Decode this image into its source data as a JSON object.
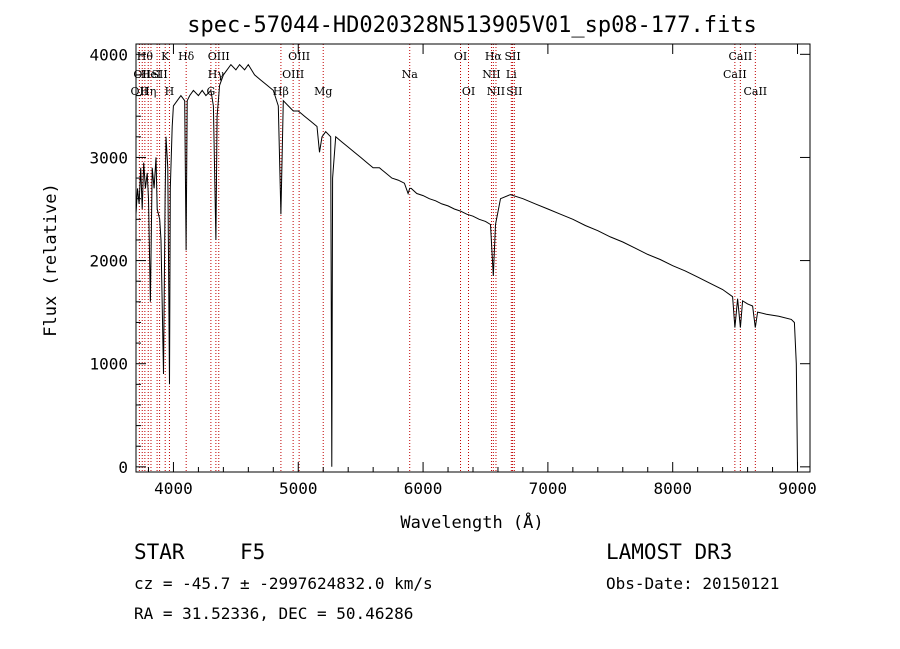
{
  "chart_data": {
    "type": "line",
    "title": "spec-57044-HD020328N513905V01_sp08-177.fits",
    "xlabel": "Wavelength (Å)",
    "ylabel": "Flux (relative)",
    "xlim": [
      3700,
      9100
    ],
    "ylim": [
      -50,
      4100
    ],
    "xticks": [
      4000,
      5000,
      6000,
      7000,
      8000,
      9000
    ],
    "yticks": [
      0,
      1000,
      2000,
      3000,
      4000
    ],
    "series": [
      {
        "name": "spectrum",
        "x": [
          3700,
          3712,
          3725,
          3738,
          3750,
          3762,
          3775,
          3790,
          3800,
          3815,
          3830,
          3845,
          3860,
          3870,
          3890,
          3900,
          3920,
          3933,
          3940,
          3955,
          3968,
          3975,
          3990,
          4000,
          4030,
          4060,
          4090,
          4101,
          4110,
          4130,
          4160,
          4200,
          4230,
          4260,
          4300,
          4320,
          4340,
          4350,
          4370,
          4400,
          4430,
          4460,
          4500,
          4530,
          4570,
          4600,
          4650,
          4700,
          4750,
          4800,
          4840,
          4861,
          4880,
          4920,
          4960,
          5000,
          5050,
          5100,
          5150,
          5170,
          5190,
          5220,
          5260,
          5269,
          5275,
          5300,
          5350,
          5400,
          5450,
          5500,
          5550,
          5600,
          5650,
          5700,
          5750,
          5800,
          5850,
          5880,
          5893,
          5905,
          5950,
          6000,
          6050,
          6100,
          6150,
          6200,
          6250,
          6300,
          6350,
          6400,
          6450,
          6500,
          6540,
          6563,
          6580,
          6620,
          6700,
          6800,
          6900,
          7000,
          7100,
          7200,
          7300,
          7400,
          7500,
          7600,
          7700,
          7800,
          7900,
          8000,
          8100,
          8200,
          8300,
          8400,
          8480,
          8498,
          8520,
          8542,
          8560,
          8600,
          8640,
          8662,
          8680,
          8750,
          8850,
          8950,
          8975,
          8990,
          9000
        ],
        "values": [
          2450,
          2700,
          2550,
          2900,
          2500,
          2950,
          2700,
          2850,
          2600,
          1600,
          2900,
          2700,
          3000,
          2500,
          2400,
          2200,
          900,
          2600,
          3200,
          2900,
          800,
          2700,
          3300,
          3500,
          3550,
          3600,
          3550,
          2100,
          3550,
          3600,
          3650,
          3600,
          3650,
          3600,
          3650,
          3500,
          2200,
          3400,
          3700,
          3800,
          3850,
          3900,
          3850,
          3900,
          3850,
          3900,
          3800,
          3750,
          3700,
          3650,
          3500,
          2450,
          3550,
          3500,
          3450,
          3450,
          3400,
          3350,
          3300,
          3050,
          3200,
          3250,
          3200,
          0,
          2800,
          3200,
          3150,
          3100,
          3050,
          3000,
          2950,
          2900,
          2900,
          2850,
          2800,
          2780,
          2750,
          2650,
          2700,
          2700,
          2650,
          2630,
          2600,
          2580,
          2550,
          2530,
          2500,
          2480,
          2450,
          2430,
          2400,
          2380,
          2350,
          1850,
          2350,
          2600,
          2640,
          2600,
          2550,
          2500,
          2450,
          2400,
          2340,
          2290,
          2230,
          2180,
          2120,
          2060,
          2010,
          1950,
          1900,
          1840,
          1780,
          1720,
          1650,
          1350,
          1630,
          1350,
          1610,
          1580,
          1560,
          1350,
          1500,
          1480,
          1460,
          1430,
          1400,
          1000,
          0
        ]
      }
    ],
    "spectral_lines": [
      {
        "wavelength": 3727,
        "label": "OII",
        "row": 2
      },
      {
        "wavelength": 3750,
        "label": "OII",
        "row": 1
      },
      {
        "wavelength": 3771,
        "label": "Hθ",
        "row": 0
      },
      {
        "wavelength": 3798,
        "label": "Hη",
        "row": 2
      },
      {
        "wavelength": 3820,
        "label": "HeI",
        "row": 1
      },
      {
        "wavelength": 3869,
        "label": "",
        "row": 0
      },
      {
        "wavelength": 3889,
        "label": "SII",
        "row": 1
      },
      {
        "wavelength": 3934,
        "label": "K",
        "row": 0
      },
      {
        "wavelength": 3968,
        "label": "H",
        "row": 2
      },
      {
        "wavelength": 4102,
        "label": "Hδ",
        "row": 0
      },
      {
        "wavelength": 4300,
        "label": "G",
        "row": 2
      },
      {
        "wavelength": 4340,
        "label": "Hγ",
        "row": 1
      },
      {
        "wavelength": 4363,
        "label": "OIII",
        "row": 0
      },
      {
        "wavelength": 4861,
        "label": "Hβ",
        "row": 2
      },
      {
        "wavelength": 4959,
        "label": "OIII",
        "row": 1
      },
      {
        "wavelength": 5007,
        "label": "OIII",
        "row": 0
      },
      {
        "wavelength": 5200,
        "label": "Mg",
        "row": 2
      },
      {
        "wavelength": 5893,
        "label": "Na",
        "row": 1
      },
      {
        "wavelength": 6300,
        "label": "OI",
        "row": 0
      },
      {
        "wavelength": 6364,
        "label": "OI",
        "row": 2
      },
      {
        "wavelength": 6548,
        "label": "NII",
        "row": 1
      },
      {
        "wavelength": 6563,
        "label": "Hα",
        "row": 0
      },
      {
        "wavelength": 6584,
        "label": "NII",
        "row": 2
      },
      {
        "wavelength": 6707,
        "label": "Li",
        "row": 1
      },
      {
        "wavelength": 6717,
        "label": "SII",
        "row": 0
      },
      {
        "wavelength": 6731,
        "label": "SII",
        "row": 2
      },
      {
        "wavelength": 8498,
        "label": "CaII",
        "row": 1
      },
      {
        "wavelength": 8542,
        "label": "CaII",
        "row": 0
      },
      {
        "wavelength": 8662,
        "label": "CaII",
        "row": 2
      }
    ]
  },
  "info": {
    "object_class": "STAR",
    "subclass": "F5",
    "survey": "LAMOST DR3",
    "redshift_line": "cz = -45.7 ± -2997624832.0 km/s",
    "obs_date_line": "Obs-Date: 20150121",
    "coords_line": "RA =  31.52336, DEC =  50.46286"
  },
  "colors": {
    "spectrum": "#000000",
    "line_markers": "#c00000",
    "background": "#ffffff"
  }
}
